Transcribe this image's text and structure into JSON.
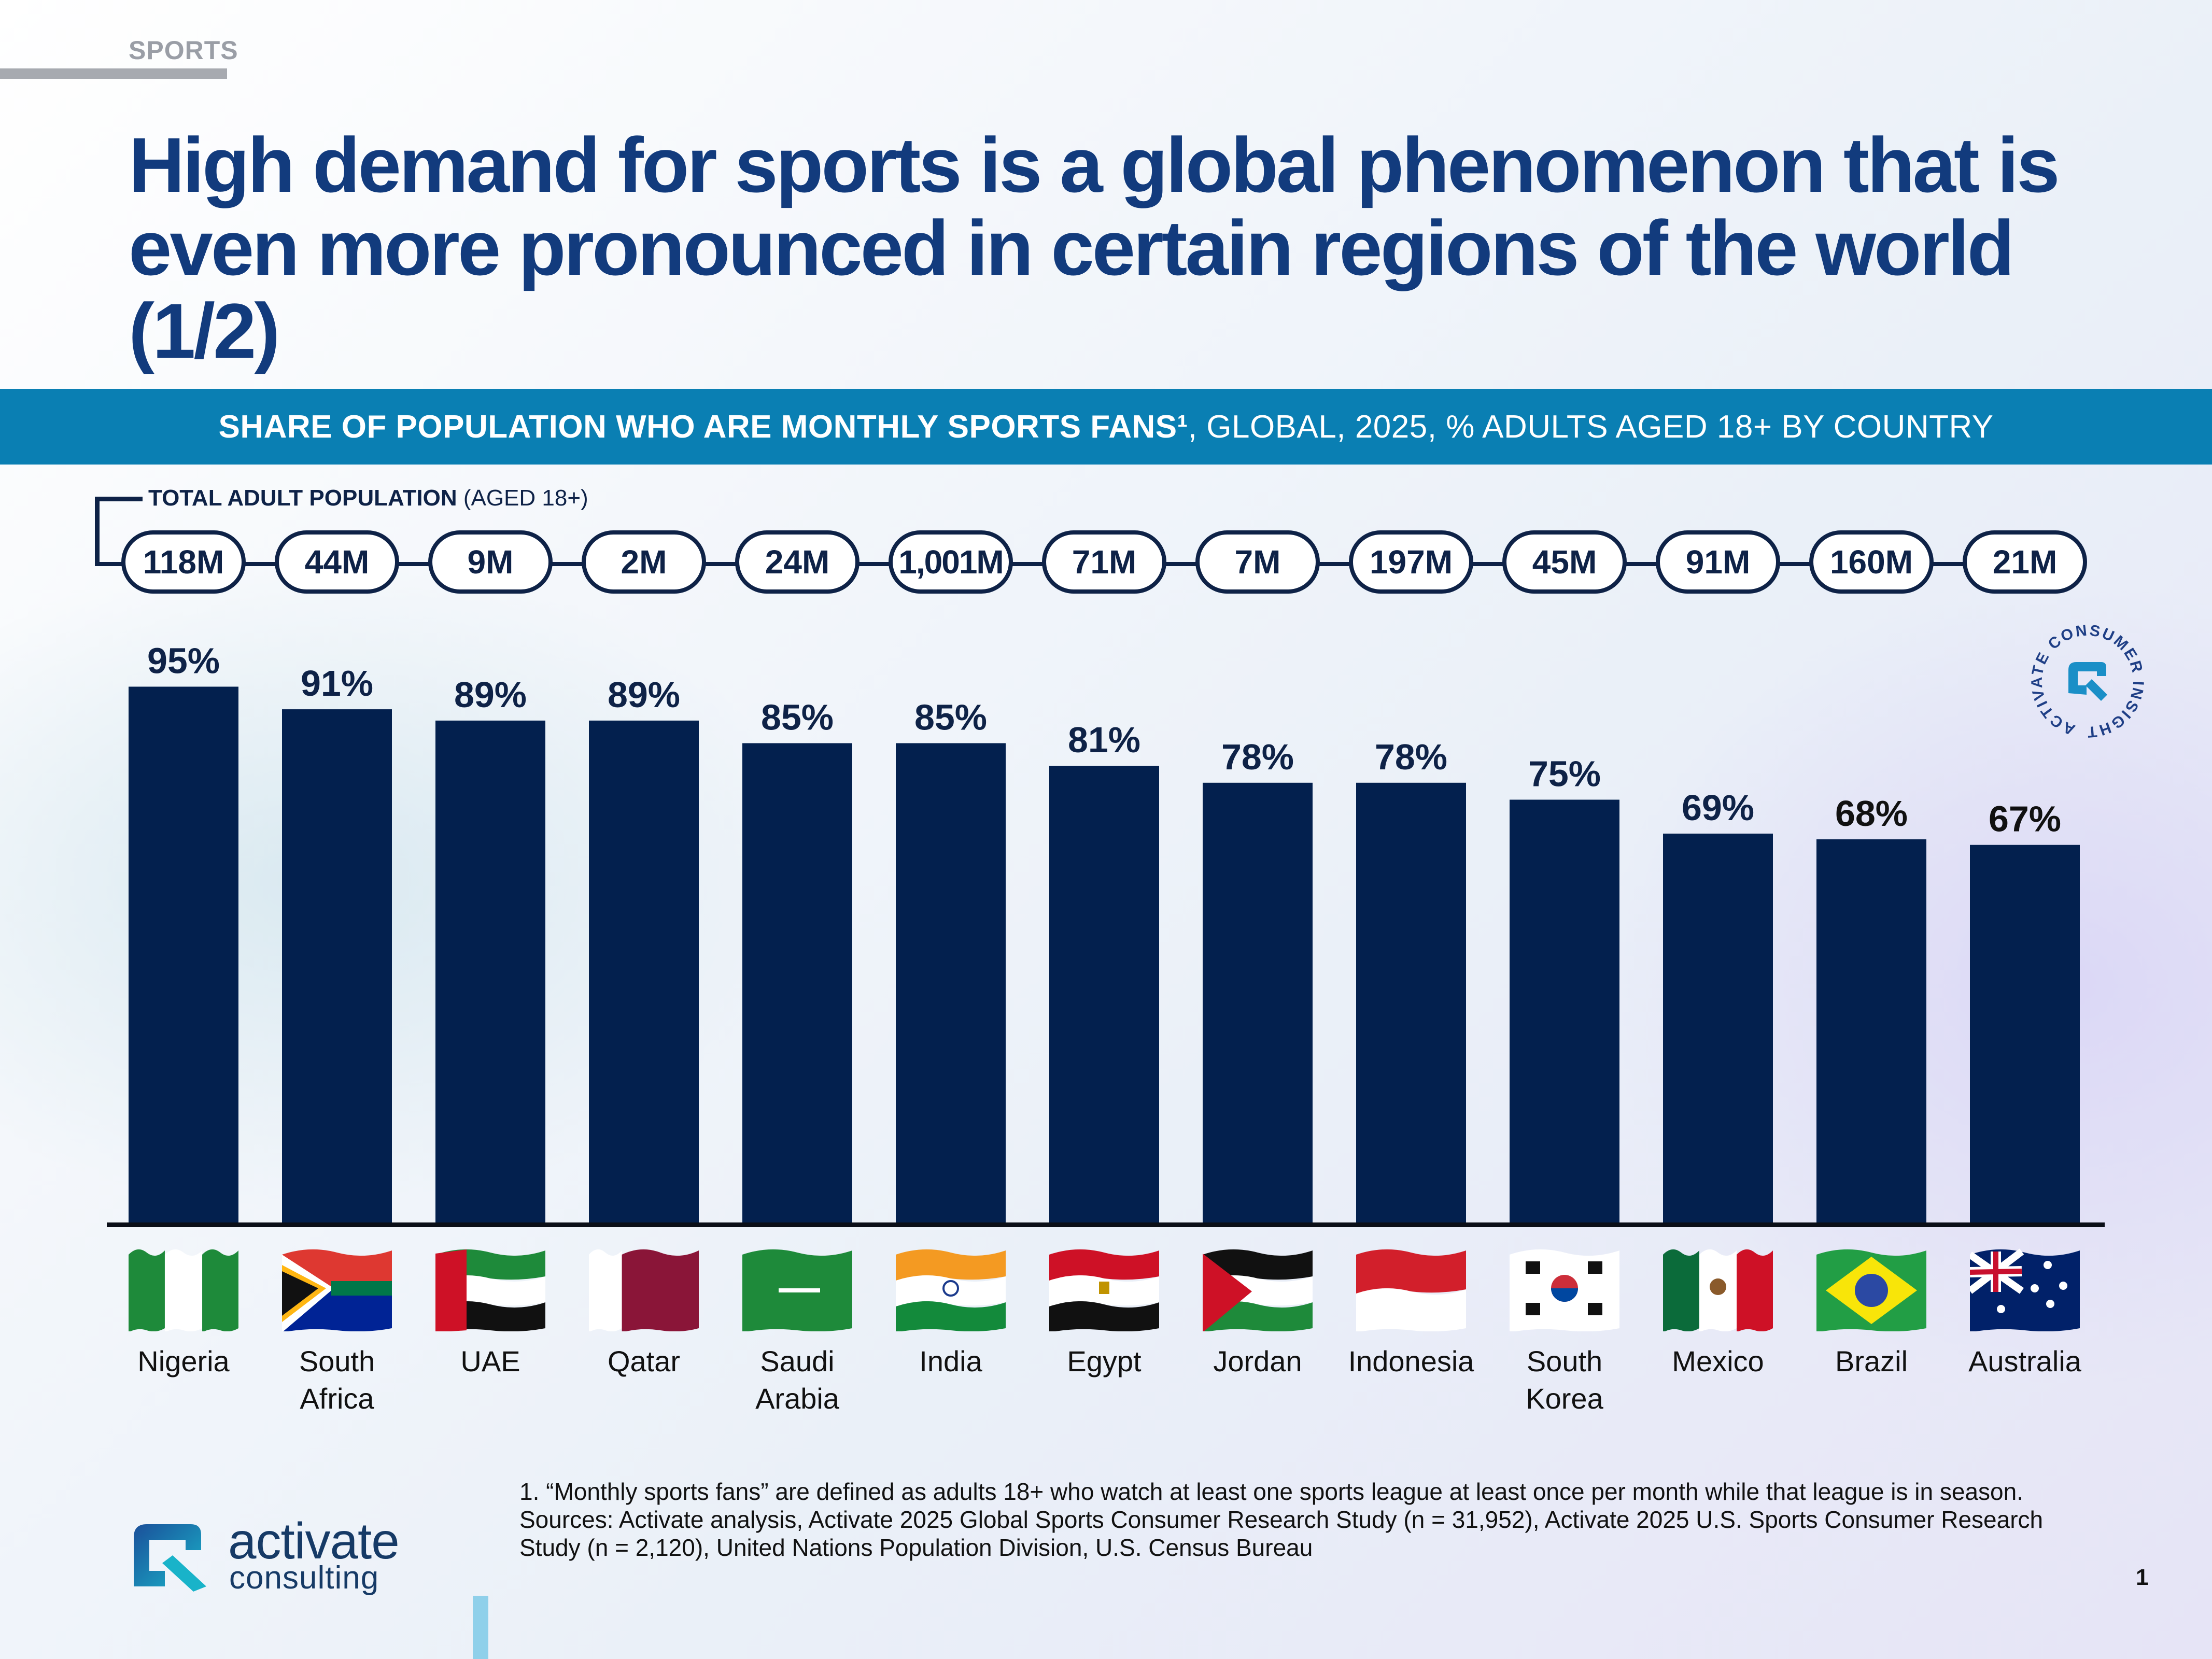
{
  "section": "SPORTS",
  "title": "High demand for sports is a global phenomenon that is even more pronounced in certain regions of the world (1/2)",
  "band": {
    "bold": "SHARE OF POPULATION WHO ARE MONTHLY SPORTS FANS¹",
    "rest": ", GLOBAL, 2025, % ADULTS AGED 18+ BY COUNTRY"
  },
  "population_label": {
    "bold": "TOTAL ADULT POPULATION",
    "rest": " (AGED 18+)"
  },
  "countries": [
    {
      "name": "Nigeria",
      "population": "118M",
      "value": 95,
      "label": "95%"
    },
    {
      "name": "South\nAfrica",
      "population": "44M",
      "value": 91,
      "label": "91%"
    },
    {
      "name": "UAE",
      "population": "9M",
      "value": 89,
      "label": "89%"
    },
    {
      "name": "Qatar",
      "population": "2M",
      "value": 89,
      "label": "89%"
    },
    {
      "name": "Saudi\nArabia",
      "population": "24M",
      "value": 85,
      "label": "85%"
    },
    {
      "name": "India",
      "population": "1,001M",
      "value": 85,
      "label": "85%"
    },
    {
      "name": "Egypt",
      "population": "71M",
      "value": 81,
      "label": "81%"
    },
    {
      "name": "Jordan",
      "population": "7M",
      "value": 78,
      "label": "78%"
    },
    {
      "name": "Indonesia",
      "population": "197M",
      "value": 78,
      "label": "78%"
    },
    {
      "name": "South Korea",
      "population": "45M",
      "value": 75,
      "label": "75%"
    },
    {
      "name": "Mexico",
      "population": "91M",
      "value": 69,
      "label": "69%"
    },
    {
      "name": "Brazil",
      "population": "160M",
      "value": 68,
      "label": "68%"
    },
    {
      "name": "Australia",
      "population": "21M",
      "value": 67,
      "label": "67%"
    }
  ],
  "chart_data": {
    "type": "bar",
    "title": "SHARE OF POPULATION WHO ARE MONTHLY SPORTS FANS, GLOBAL, 2025, % ADULTS AGED 18+ BY COUNTRY",
    "categories": [
      "Nigeria",
      "South Africa",
      "UAE",
      "Qatar",
      "Saudi Arabia",
      "India",
      "Egypt",
      "Jordan",
      "Indonesia",
      "South Korea",
      "Mexico",
      "Brazil",
      "Australia"
    ],
    "values": [
      95,
      91,
      89,
      89,
      85,
      85,
      81,
      78,
      78,
      75,
      69,
      68,
      67
    ],
    "unit": "%",
    "ylim": [
      0,
      100
    ],
    "xlabel": "",
    "ylabel": "",
    "grid": false,
    "annotations": [
      "118M",
      "44M",
      "9M",
      "2M",
      "24M",
      "1,001M",
      "71M",
      "7M",
      "197M",
      "45M",
      "91M",
      "160M",
      "21M"
    ]
  },
  "badge": {
    "text": "ACTIVATE CONSUMER INSIGHT"
  },
  "footnotes": {
    "note1": "1. “Monthly sports fans” are defined as adults 18+ who watch at least one sports league at least once per month while that league is in season.",
    "sources": "Sources: Activate analysis, Activate 2025 Global Sports Consumer Research Study (n = 31,952), Activate 2025 U.S. Sports Consumer Research Study (n = 2,120), United Nations Population Division, U.S. Census Bureau"
  },
  "logo": {
    "line1": "activate",
    "line2": "consulting"
  },
  "page_number": "1",
  "colors": {
    "bar": "#03204e",
    "title": "#123b7d",
    "band": "#0a7fb3",
    "pill_border": "#0e2247"
  }
}
